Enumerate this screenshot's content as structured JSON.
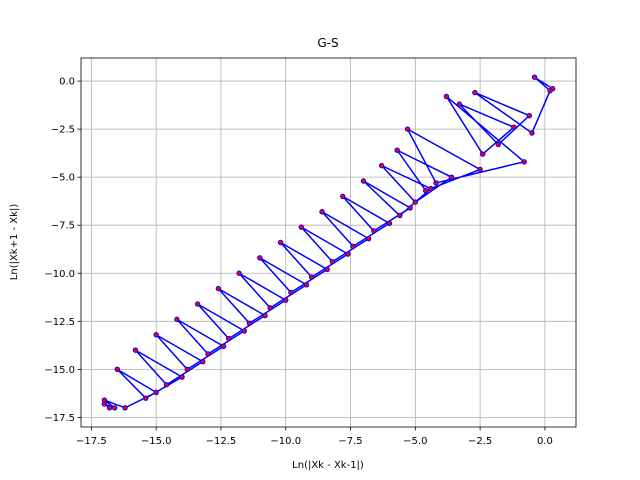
{
  "chart_data": {
    "type": "line",
    "title": "G-S",
    "x_label": "Ln(|Xk - Xk-1|)",
    "y_label": "Ln(|Xk+1 - Xk|)",
    "x": [
      0.3,
      -0.4,
      0.2,
      -0.5,
      -2.7,
      -0.6,
      -1.8,
      -3.3,
      -1.2,
      -2.4,
      -3.8,
      -0.8,
      -4.2,
      -5.3,
      -2.5,
      -4.6,
      -5.7,
      -3.6,
      -5.0,
      -6.3,
      -4.4,
      -5.6,
      -7.0,
      -5.2,
      -6.6,
      -7.8,
      -6.0,
      -7.4,
      -8.6,
      -6.8,
      -8.2,
      -9.4,
      -7.6,
      -9.0,
      -10.2,
      -8.4,
      -9.8,
      -11.0,
      -9.2,
      -10.6,
      -11.8,
      -10.0,
      -11.4,
      -12.6,
      -10.8,
      -12.2,
      -13.4,
      -11.6,
      -13.0,
      -14.2,
      -12.4,
      -13.8,
      -15.0,
      -13.2,
      -14.6,
      -15.8,
      -14.0,
      -15.4,
      -16.5,
      -15.0,
      -16.2,
      -17.0,
      -16.6,
      -17.0,
      -16.8
    ],
    "values": [
      -0.4,
      0.2,
      -0.5,
      -2.7,
      -0.6,
      -1.8,
      -3.3,
      -1.2,
      -2.4,
      -3.8,
      -0.8,
      -4.2,
      -5.3,
      -2.5,
      -4.6,
      -5.7,
      -3.6,
      -5.0,
      -6.3,
      -4.4,
      -5.6,
      -7.0,
      -5.2,
      -6.6,
      -7.8,
      -6.0,
      -7.4,
      -8.6,
      -6.8,
      -8.2,
      -9.4,
      -7.6,
      -9.0,
      -10.2,
      -8.4,
      -9.8,
      -11.0,
      -9.2,
      -10.6,
      -11.8,
      -10.0,
      -11.4,
      -12.6,
      -10.8,
      -12.2,
      -13.4,
      -11.6,
      -13.0,
      -14.2,
      -12.4,
      -13.8,
      -15.0,
      -13.2,
      -14.6,
      -15.8,
      -14.0,
      -15.4,
      -16.5,
      -15.0,
      -16.2,
      -17.0,
      -16.6,
      -17.0,
      -16.8,
      -17.0
    ],
    "color": "#0000ff",
    "marker_color": "#ff0000",
    "xlim": [
      -17.9,
      1.2
    ],
    "ylim": [
      -18.0,
      1.2
    ],
    "xticks": [
      {
        "value": -17.5,
        "label": "−17.5"
      },
      {
        "value": -15,
        "label": "−15.0"
      },
      {
        "value": -12.5,
        "label": "−12.5"
      },
      {
        "value": -10,
        "label": "−10.0"
      },
      {
        "value": -7.5,
        "label": "−7.5"
      },
      {
        "value": -5,
        "label": "−5.0"
      },
      {
        "value": -2.5,
        "label": "−2.5"
      },
      {
        "value": 0,
        "label": "0.0"
      }
    ],
    "yticks": [
      {
        "value": -17.5,
        "label": "−17.5"
      },
      {
        "value": -15,
        "label": "−15.0"
      },
      {
        "value": -12.5,
        "label": "−12.5"
      },
      {
        "value": -10,
        "label": "−10.0"
      },
      {
        "value": -7.5,
        "label": "−7.5"
      },
      {
        "value": -5,
        "label": "−5.0"
      },
      {
        "value": -2.5,
        "label": "−2.5"
      },
      {
        "value": 0,
        "label": "0.0"
      }
    ],
    "grid": true
  }
}
